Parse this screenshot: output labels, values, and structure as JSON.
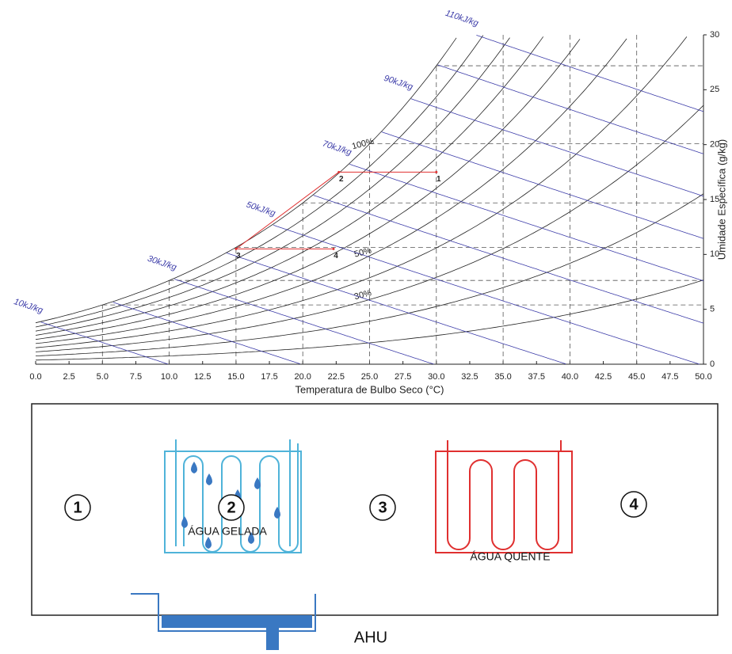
{
  "chart_data": {
    "type": "psychrometric",
    "xlabel": "Temperatura de Bulbo Seco (°C)",
    "ylabel": "Umidade Específica (g/kg)",
    "xlim": [
      0,
      50
    ],
    "ylim": [
      0,
      30
    ],
    "xticks": [
      {
        "value": 0,
        "label": "0.0"
      },
      {
        "value": 2.5,
        "label": "2.5"
      },
      {
        "value": 5,
        "label": "5.0"
      },
      {
        "value": 7.5,
        "label": "7.5"
      },
      {
        "value": 10,
        "label": "10.0"
      },
      {
        "value": 12.5,
        "label": "12.5"
      },
      {
        "value": 15,
        "label": "15.0"
      },
      {
        "value": 17.5,
        "label": "17.5"
      },
      {
        "value": 20,
        "label": "20.0"
      },
      {
        "value": 22.5,
        "label": "22.5"
      },
      {
        "value": 25,
        "label": "25.0"
      },
      {
        "value": 27.5,
        "label": "27.5"
      },
      {
        "value": 30,
        "label": "30.0"
      },
      {
        "value": 32.5,
        "label": "32.5"
      },
      {
        "value": 35,
        "label": "35.0"
      },
      {
        "value": 37.5,
        "label": "37.5"
      },
      {
        "value": 40,
        "label": "40.0"
      },
      {
        "value": 42.5,
        "label": "42.5"
      },
      {
        "value": 45,
        "label": "45.0"
      },
      {
        "value": 47.5,
        "label": "47.5"
      },
      {
        "value": 50,
        "label": "50.0"
      }
    ],
    "yticks": [
      0,
      5,
      10,
      15,
      20,
      25,
      30
    ],
    "grid_x": [
      5,
      10,
      15,
      20,
      25,
      30,
      35,
      40,
      45
    ],
    "rh_color": "#222222",
    "enthalpy_color": "#3b3ba8",
    "process_color": "#e03030",
    "rh_curves": [
      {
        "value": 10
      },
      {
        "value": 20
      },
      {
        "value": 30,
        "label": "30%"
      },
      {
        "value": 40
      },
      {
        "value": 50,
        "label": "50%"
      },
      {
        "value": 60
      },
      {
        "value": 70
      },
      {
        "value": 80
      },
      {
        "value": 90
      },
      {
        "value": 100,
        "label": "100%"
      }
    ],
    "enthalpy_lines": [
      {
        "value": 10,
        "label": "10kJ/kg"
      },
      {
        "value": 20
      },
      {
        "value": 30,
        "label": "30kJ/kg"
      },
      {
        "value": 40
      },
      {
        "value": 50,
        "label": "50kJ/kg"
      },
      {
        "value": 60
      },
      {
        "value": 70,
        "label": "70kJ/kg"
      },
      {
        "value": 80
      },
      {
        "value": 90,
        "label": "90kJ/kg"
      },
      {
        "value": 100
      },
      {
        "value": 110,
        "label": "110kJ/kg"
      }
    ],
    "points": {
      "labels": [
        "1",
        "2",
        "3",
        "4"
      ],
      "x": [
        30,
        22.7,
        15,
        22.3
      ],
      "y": [
        17.5,
        17.5,
        10.5,
        10.5
      ]
    }
  },
  "diagram": {
    "stages": [
      "1",
      "2",
      "3",
      "4"
    ],
    "cooling_coil": "ÁGUA GELADA",
    "heating_coil": "ÁGUA QUENTE",
    "unit": "AHU"
  }
}
